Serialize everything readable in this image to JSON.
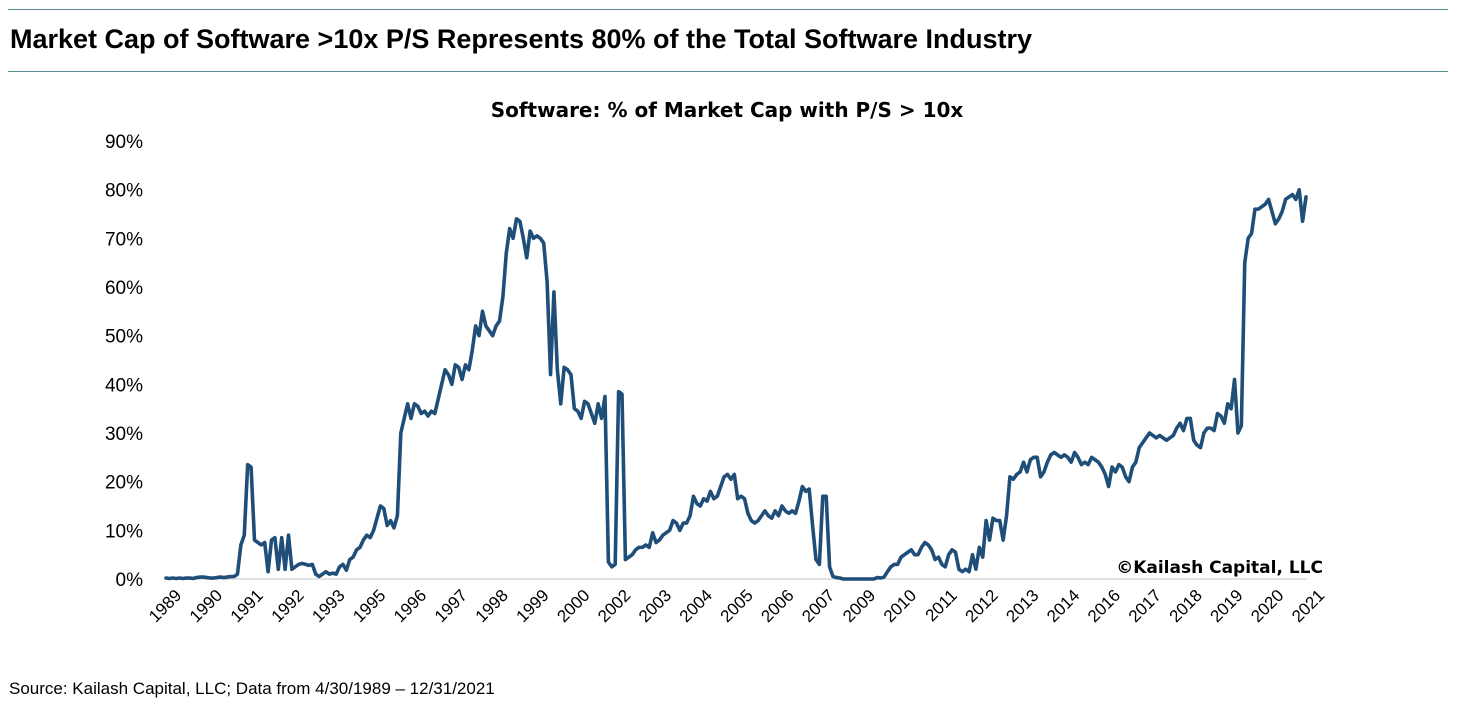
{
  "header": {
    "title": "Market Cap of Software >10x P/S Represents 80% of the Total Software Industry"
  },
  "footer": {
    "source": "Source: Kailash Capital, LLC; Data from 4/30/1989 – 12/31/2021"
  },
  "chart_data": {
    "type": "line",
    "title": "Software: % of Market Cap with P/S > 10x",
    "xlabel": "",
    "ylabel": "",
    "annotation": "©Kailash Capital, LLC",
    "line_color": "#1f4e79",
    "ylim": [
      0,
      90
    ],
    "y_ticks": [
      "0%",
      "10%",
      "20%",
      "30%",
      "40%",
      "50%",
      "60%",
      "70%",
      "80%",
      "90%"
    ],
    "x_tick_labels": [
      "1989",
      "1990",
      "1991",
      "1992",
      "1993",
      "1995",
      "1996",
      "1997",
      "1998",
      "1999",
      "2000",
      "2002",
      "2003",
      "2004",
      "2005",
      "2006",
      "2007",
      "2009",
      "2010",
      "2011",
      "2012",
      "2013",
      "2014",
      "2016",
      "2017",
      "2018",
      "2019",
      "2020",
      "2021"
    ],
    "grid": false,
    "series": [
      {
        "values": [
          0.2,
          0.1,
          0.2,
          0.1,
          0.2,
          0.1,
          0.2,
          0.2,
          0.1,
          0.3,
          0.4,
          0.4,
          0.3,
          0.2,
          0.2,
          0.3,
          0.4,
          0.3,
          0.4,
          0.5,
          0.5,
          1,
          7,
          9,
          23.5,
          23,
          8,
          7.5,
          7,
          7.5,
          1.5,
          8,
          8.5,
          2,
          8.5,
          2,
          9,
          2,
          2.5,
          3,
          3.2,
          3,
          2.8,
          3,
          1,
          0.5,
          1,
          1.5,
          1,
          1.2,
          1,
          2.5,
          3,
          1.8,
          4,
          4.5,
          6,
          6.5,
          8,
          9,
          8.5,
          10,
          12.5,
          15,
          14.5,
          11,
          12,
          10.5,
          13,
          30,
          33,
          36,
          33,
          36,
          35.5,
          34,
          34.5,
          33.5,
          34.5,
          34,
          37,
          40,
          43,
          42,
          40,
          44,
          43.5,
          41,
          44,
          43,
          47,
          52,
          50,
          55,
          52,
          51,
          50,
          52,
          53,
          58,
          67,
          72,
          70,
          74,
          73.5,
          70,
          66,
          71.5,
          70,
          70.5,
          70,
          69,
          61,
          42,
          59,
          43,
          36,
          43.5,
          43,
          42,
          35,
          34.5,
          33,
          36.5,
          36,
          34,
          32,
          36,
          33,
          37.5,
          3.5,
          2.5,
          3,
          38.5,
          38,
          4,
          4.5,
          5,
          6,
          6.5,
          6.5,
          7,
          6.5,
          9.5,
          7.5,
          8,
          9,
          9.5,
          10,
          12,
          11.5,
          10,
          11.5,
          11.5,
          13,
          17,
          15.5,
          15,
          16.5,
          16,
          18,
          16.5,
          17,
          19,
          21,
          21.5,
          20.5,
          21.5,
          16.5,
          17,
          16.5,
          13.5,
          12,
          11.5,
          12,
          13,
          14,
          13,
          12.5,
          14,
          13,
          15,
          14,
          13.5,
          14,
          13.5,
          16,
          19,
          18,
          18.5,
          11,
          4,
          3,
          17,
          17,
          2.5,
          0.5,
          0.3,
          0.2,
          0,
          0,
          0,
          0,
          0,
          0,
          0,
          0,
          0,
          0,
          0.3,
          0.2,
          0.4,
          1.5,
          2.5,
          3,
          3,
          4.5,
          5,
          5.5,
          6,
          5,
          5,
          6.5,
          7.5,
          7,
          6,
          4,
          4.5,
          3,
          2.5,
          5,
          6,
          5.5,
          2,
          1.5,
          2,
          1.5,
          5,
          2,
          6.5,
          4.5,
          12,
          8,
          12.5,
          12,
          12,
          8,
          13,
          21,
          20.5,
          21.5,
          22,
          24,
          22,
          24.5,
          25,
          25,
          21,
          22,
          24,
          25.5,
          26,
          25.5,
          25,
          25.5,
          25,
          24,
          26,
          25,
          23.5,
          24,
          23.5,
          25,
          24.5,
          24,
          23,
          21.5,
          19,
          23,
          22,
          23.5,
          23,
          21,
          20,
          23,
          24,
          27,
          28,
          29,
          30,
          29.5,
          29,
          29.5,
          29,
          28.5,
          29,
          29.5,
          31,
          32,
          30.5,
          33,
          33,
          28.5,
          27.5,
          27,
          30,
          31,
          31,
          30.5,
          34,
          33.5,
          32,
          36,
          35,
          41,
          30,
          31.5,
          65,
          70,
          71,
          76,
          76,
          76.5,
          77,
          78,
          75.5,
          73,
          74,
          75.5,
          78,
          78.5,
          79,
          78,
          80,
          73.5,
          78.5
        ]
      }
    ]
  }
}
